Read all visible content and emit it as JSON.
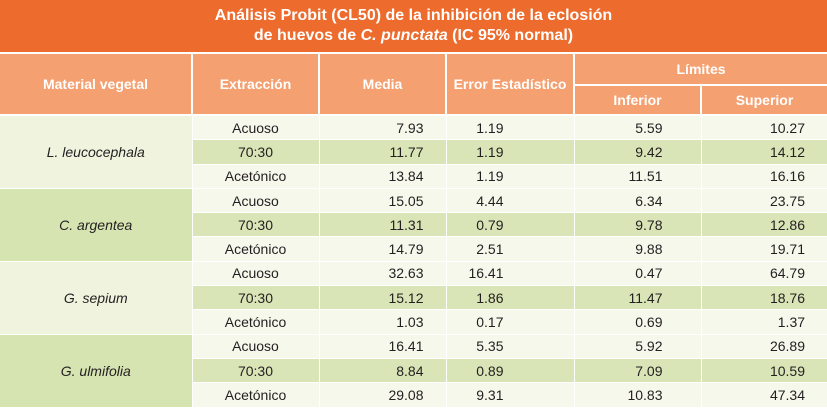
{
  "title": {
    "line1": "Análisis Probit (CL50) de la inhibición de la eclosión",
    "line2_prefix": "de huevos de ",
    "line2_species": "C. punctata",
    "line2_suffix": " (IC 95% normal)"
  },
  "headers": {
    "material": "Material vegetal",
    "extraccion": "Extracción",
    "media": "Media",
    "error": "Error Estadístico",
    "limites": "Límites",
    "inferior": "Inferior",
    "superior": "Superior"
  },
  "groups": [
    {
      "material": "L. leucocephala",
      "rows": [
        {
          "extraccion": "Acuoso",
          "media": "7.93",
          "error": "1.19",
          "inferior": "5.59",
          "superior": "10.27"
        },
        {
          "extraccion": "70:30",
          "media": "11.77",
          "error": "1.19",
          "inferior": "9.42",
          "superior": "14.12"
        },
        {
          "extraccion": "Acetónico",
          "media": "13.84",
          "error": "1.19",
          "inferior": "11.51",
          "superior": "16.16"
        }
      ]
    },
    {
      "material": "C. argentea",
      "rows": [
        {
          "extraccion": "Acuoso",
          "media": "15.05",
          "error": "4.44",
          "inferior": "6.34",
          "superior": "23.75"
        },
        {
          "extraccion": "70:30",
          "media": "11.31",
          "error": "0.79",
          "inferior": "9.78",
          "superior": "12.86"
        },
        {
          "extraccion": "Acetónico",
          "media": "14.79",
          "error": "2.51",
          "inferior": "9.88",
          "superior": "19.71"
        }
      ]
    },
    {
      "material": "G. sepium",
      "rows": [
        {
          "extraccion": "Acuoso",
          "media": "32.63",
          "error": "16.41",
          "inferior": "0.47",
          "superior": "64.79"
        },
        {
          "extraccion": "70:30",
          "media": "15.12",
          "error": "1.86",
          "inferior": "11.47",
          "superior": "18.76"
        },
        {
          "extraccion": "Acetónico",
          "media": "1.03",
          "error": "0.17",
          "inferior": "0.69",
          "superior": "1.37"
        }
      ]
    },
    {
      "material": "G. ulmifolia",
      "rows": [
        {
          "extraccion": "Acuoso",
          "media": "16.41",
          "error": "5.35",
          "inferior": "5.92",
          "superior": "26.89"
        },
        {
          "extraccion": "70:30",
          "media": "8.84",
          "error": "0.89",
          "inferior": "7.09",
          "superior": "10.59"
        },
        {
          "extraccion": "Acetónico",
          "media": "29.08",
          "error": "9.31",
          "inferior": "10.83",
          "superior": "47.34"
        }
      ]
    }
  ]
}
